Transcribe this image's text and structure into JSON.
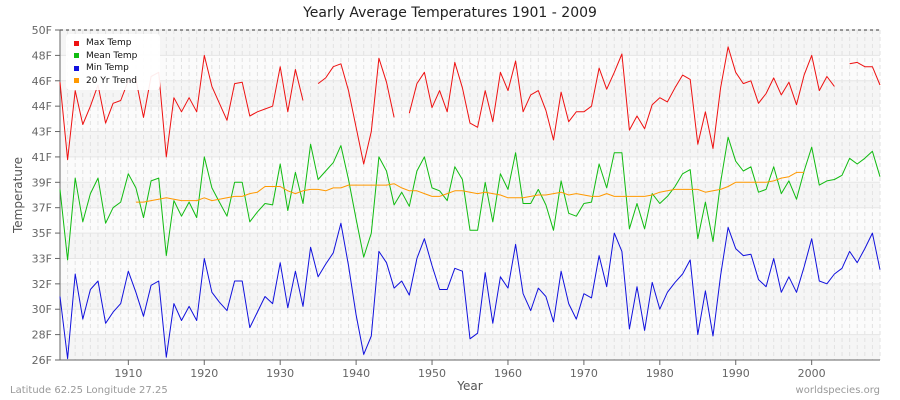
{
  "title": "Yearly Average Temperatures 1901 - 2009",
  "footer": {
    "location": "Latitude 62.25 Longitude 27.25",
    "source": "worldspecies.org"
  },
  "colors": {
    "max": "#ee1111",
    "mean": "#11bb11",
    "min": "#1111dd",
    "trend": "#ff9900",
    "axis": "#666666",
    "band": "#f3f3f3",
    "grid": "#dddddd"
  },
  "legend": [
    {
      "label": "Max Temp",
      "color": "#ee1111"
    },
    {
      "label": "Mean Temp",
      "color": "#11bb11"
    },
    {
      "label": "Min Temp",
      "color": "#1111dd"
    },
    {
      "label": "20 Yr Trend",
      "color": "#ff9900"
    }
  ],
  "chart_data": {
    "type": "line",
    "title": "Yearly Average Temperatures 1901 - 2009",
    "xlabel": "Year",
    "ylabel": "Temperature",
    "xlim": [
      1901,
      2009
    ],
    "ylim": [
      26.6,
      50
    ],
    "x_ticks": [
      1910,
      1920,
      1930,
      1940,
      1950,
      1960,
      1970,
      1980,
      1990,
      2000
    ],
    "y_ticks": [
      {
        "label": "50F",
        "value": 50.0
      },
      {
        "label": "48F",
        "value": 48.2
      },
      {
        "label": "46F",
        "value": 46.4
      },
      {
        "label": "44F",
        "value": 44.6
      },
      {
        "label": "43F",
        "value": 42.8
      },
      {
        "label": "41F",
        "value": 41.0
      },
      {
        "label": "39F",
        "value": 39.2
      },
      {
        "label": "37F",
        "value": 37.4
      },
      {
        "label": "35F",
        "value": 35.6
      },
      {
        "label": "33F",
        "value": 33.8
      },
      {
        "label": "32F",
        "value": 32.0
      },
      {
        "label": "30F",
        "value": 30.2
      },
      {
        "label": "28F",
        "value": 28.4
      },
      {
        "label": "26F",
        "value": 26.6
      }
    ],
    "grid": true,
    "legend_position": "top-left",
    "x_start": 1901,
    "series": [
      {
        "name": "Max Temp",
        "color": "#ee1111",
        "values": [
          46.3,
          40.8,
          45.7,
          43.3,
          44.6,
          46.1,
          43.4,
          44.8,
          45.0,
          46.4,
          46.5,
          43.8,
          46.7,
          47.0,
          41.0,
          45.2,
          44.2,
          45.2,
          44.2,
          48.2,
          46.0,
          44.8,
          43.6,
          46.2,
          46.3,
          43.9,
          44.2,
          44.4,
          44.6,
          47.4,
          44.2,
          47.2,
          45.0,
          null,
          46.2,
          46.6,
          47.4,
          47.6,
          45.7,
          43.1,
          40.5,
          42.8,
          48.0,
          46.3,
          43.8,
          null,
          44.1,
          46.2,
          47.0,
          44.5,
          45.7,
          44.2,
          47.7,
          45.9,
          43.4,
          43.1,
          45.7,
          43.5,
          47.0,
          45.7,
          47.8,
          44.2,
          45.4,
          45.7,
          44.3,
          42.2,
          45.6,
          43.5,
          44.2,
          44.2,
          44.6,
          47.3,
          45.8,
          47.0,
          48.3,
          42.9,
          43.9,
          43.0,
          44.7,
          45.2,
          44.9,
          45.9,
          46.8,
          46.5,
          41.9,
          44.2,
          41.6,
          45.9,
          48.8,
          47.0,
          46.2,
          46.4,
          44.8,
          45.5,
          46.6,
          45.4,
          46.3,
          44.7,
          46.8,
          48.2,
          45.7,
          46.7,
          46.0,
          null,
          47.6,
          47.7,
          47.4,
          47.4,
          46.1
        ]
      },
      {
        "name": "Mean Temp",
        "color": "#11bb11",
        "values": [
          38.7,
          33.7,
          39.5,
          36.4,
          38.4,
          39.5,
          36.3,
          37.4,
          37.8,
          39.8,
          38.8,
          36.7,
          39.3,
          39.5,
          34.0,
          37.9,
          36.8,
          37.8,
          36.7,
          41.0,
          38.8,
          37.8,
          36.8,
          39.2,
          39.2,
          36.4,
          37.1,
          37.7,
          37.6,
          40.5,
          37.2,
          39.9,
          37.7,
          41.9,
          39.4,
          40.0,
          40.6,
          41.8,
          39.4,
          36.6,
          33.9,
          35.6,
          41.0,
          40.0,
          37.6,
          38.5,
          37.5,
          40.0,
          41.0,
          38.8,
          38.6,
          37.9,
          40.3,
          39.4,
          35.8,
          35.8,
          39.2,
          36.4,
          39.8,
          38.7,
          41.3,
          37.7,
          37.7,
          38.7,
          37.6,
          35.8,
          39.3,
          37.0,
          36.8,
          37.7,
          37.8,
          40.5,
          38.8,
          41.3,
          41.3,
          35.9,
          37.7,
          35.9,
          38.4,
          37.7,
          38.2,
          38.9,
          39.8,
          40.1,
          35.2,
          37.8,
          35.0,
          39.2,
          42.4,
          40.7,
          40.0,
          40.3,
          38.5,
          38.7,
          40.3,
          38.4,
          39.3,
          38.0,
          40.0,
          41.7,
          39.0,
          39.3,
          39.4,
          39.7,
          40.9,
          40.5,
          40.9,
          41.4,
          39.6
        ]
      },
      {
        "name": "Min Temp",
        "color": "#1111dd",
        "values": [
          31.1,
          26.7,
          32.7,
          29.5,
          31.6,
          32.2,
          29.2,
          30.0,
          30.6,
          32.9,
          31.4,
          29.7,
          31.9,
          32.2,
          26.8,
          30.6,
          29.4,
          30.4,
          29.4,
          33.8,
          31.4,
          30.7,
          30.1,
          32.2,
          32.2,
          28.9,
          30.0,
          31.1,
          30.6,
          33.5,
          30.3,
          32.9,
          30.4,
          34.6,
          32.5,
          33.4,
          34.2,
          36.3,
          33.3,
          29.8,
          27.0,
          28.3,
          34.3,
          33.5,
          31.7,
          32.2,
          31.2,
          33.8,
          35.2,
          33.3,
          31.6,
          31.6,
          33.1,
          32.9,
          28.1,
          28.5,
          32.8,
          29.2,
          32.5,
          31.7,
          34.8,
          31.3,
          30.1,
          31.7,
          31.1,
          29.3,
          32.9,
          30.6,
          29.5,
          31.3,
          31.0,
          34.0,
          31.8,
          35.6,
          34.3,
          28.8,
          31.8,
          28.7,
          32.1,
          30.2,
          31.4,
          32.1,
          32.7,
          33.7,
          28.4,
          31.5,
          28.3,
          32.6,
          36.0,
          34.5,
          34.0,
          34.1,
          32.3,
          31.8,
          33.8,
          31.4,
          32.5,
          31.4,
          33.2,
          35.2,
          32.2,
          32.0,
          32.7,
          33.1,
          34.3,
          33.5,
          34.5,
          35.6,
          33.0
        ]
      },
      {
        "name": "20 Yr Trend",
        "color": "#ff9900",
        "start_year": 1911,
        "values": [
          37.8,
          37.8,
          37.9,
          38.0,
          38.1,
          38.0,
          37.9,
          37.9,
          37.9,
          38.1,
          37.9,
          38.0,
          38.1,
          38.2,
          38.2,
          38.4,
          38.5,
          38.9,
          38.9,
          38.9,
          38.6,
          38.4,
          38.6,
          38.7,
          38.7,
          38.6,
          38.8,
          38.8,
          39.0,
          39.0,
          39.0,
          39.0,
          39.0,
          39.0,
          39.1,
          38.8,
          38.6,
          38.6,
          38.4,
          38.2,
          38.2,
          38.4,
          38.6,
          38.6,
          38.5,
          38.4,
          38.5,
          38.4,
          38.3,
          38.1,
          38.1,
          38.1,
          38.2,
          38.3,
          38.3,
          38.4,
          38.5,
          38.3,
          38.4,
          38.3,
          38.2,
          38.2,
          38.4,
          38.2,
          38.2,
          38.2,
          38.2,
          38.2,
          38.3,
          38.5,
          38.6,
          38.7,
          38.7,
          38.7,
          38.7,
          38.5,
          38.6,
          38.7,
          38.9,
          39.2,
          39.2,
          39.2,
          39.2,
          39.2,
          39.3,
          39.5,
          39.6,
          39.9,
          39.9
        ]
      }
    ]
  }
}
